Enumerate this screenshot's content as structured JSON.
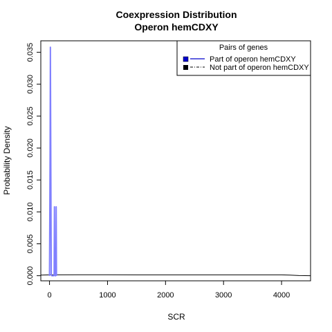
{
  "chart_data": {
    "type": "line",
    "title": "Coexpression Distribution",
    "subtitle": "Operon hemCDXY",
    "xlabel": "SCR",
    "ylabel": "Probability Density",
    "xlim": [
      -150,
      4500
    ],
    "ylim": [
      -0.0008,
      0.0368
    ],
    "x_ticks": [
      0,
      1000,
      2000,
      3000,
      4000
    ],
    "x_tick_labels": [
      "0",
      "1000",
      "2000",
      "3000",
      "4000"
    ],
    "y_ticks": [
      0.0,
      0.005,
      0.01,
      0.015,
      0.02,
      0.025,
      0.03,
      0.035
    ],
    "y_tick_labels": [
      "0.000",
      "0.005",
      "0.010",
      "0.015",
      "0.020",
      "0.025",
      "0.030",
      "0.035"
    ],
    "grid": false,
    "legend": {
      "title": "Pairs of genes",
      "placement": "top-right",
      "entries": [
        {
          "label": "Part of operon hemCDXY",
          "color": "#0000CC",
          "line": "solid"
        },
        {
          "label": "Not part of operon hemCDXY",
          "color": "#000000",
          "line": "dashdot"
        }
      ]
    },
    "series": [
      {
        "name": "Part of operon hemCDXY",
        "color": "#8080FF",
        "points": [
          [
            -10,
            0.0
          ],
          [
            0,
            0.0001
          ],
          [
            10,
            0.019
          ],
          [
            15,
            0.0358
          ],
          [
            22,
            0.019
          ],
          [
            30,
            0.0001
          ],
          [
            40,
            0.0
          ],
          [
            50,
            0.0
          ],
          [
            60,
            0.0
          ],
          [
            70,
            0.0
          ],
          [
            80,
            0.0001
          ],
          [
            85,
            0.0108
          ],
          [
            90,
            0.0001
          ],
          [
            95,
            0.0
          ],
          [
            105,
            0.0
          ],
          [
            110,
            0.0001
          ],
          [
            115,
            0.0108
          ],
          [
            120,
            0.0001
          ],
          [
            128,
            0.0
          ]
        ]
      },
      {
        "name": "Not part of operon hemCDXY",
        "color": "#000000",
        "points": [
          [
            -150,
            0.0001
          ],
          [
            0,
            0.00013
          ],
          [
            500,
            0.00015
          ],
          [
            1000,
            0.00015
          ],
          [
            1500,
            0.00014
          ],
          [
            2000,
            0.00014
          ],
          [
            2500,
            0.00014
          ],
          [
            3000,
            0.00014
          ],
          [
            3500,
            0.00014
          ],
          [
            4000,
            0.00013
          ],
          [
            4150,
            0.0001
          ],
          [
            4300,
            2e-05
          ],
          [
            4500,
            0.0
          ]
        ]
      }
    ]
  }
}
